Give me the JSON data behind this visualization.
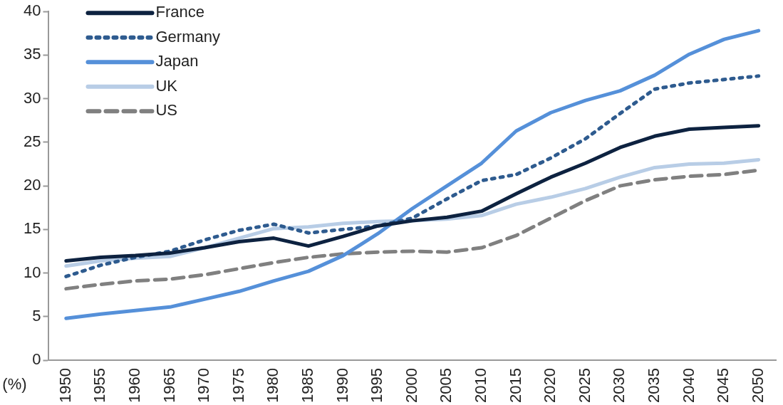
{
  "chart_data": {
    "type": "line",
    "ylabel": "(%)",
    "categories": [
      "1950",
      "1955",
      "1960",
      "1965",
      "1970",
      "1975",
      "1980",
      "1985",
      "1990",
      "1995",
      "2000",
      "2005",
      "2010",
      "2015",
      "2020",
      "2025",
      "2030",
      "2035",
      "2040",
      "2045",
      "2050"
    ],
    "ylim": [
      0,
      40
    ],
    "yticks": [
      0,
      5,
      10,
      15,
      20,
      25,
      30,
      35,
      40
    ],
    "grid": false,
    "legend": "top left",
    "marker": "none",
    "series": [
      {
        "name": "France",
        "color": "#0d2240",
        "line_style": "solid",
        "values": [
          11.4,
          11.8,
          12.0,
          12.3,
          12.9,
          13.6,
          14.0,
          13.1,
          14.2,
          15.4,
          16.0,
          16.4,
          17.1,
          19.1,
          21.0,
          22.6,
          24.4,
          25.7,
          26.5,
          26.7,
          26.9
        ]
      },
      {
        "name": "Germany",
        "color": "#2e5b8f",
        "line_style": "dotted",
        "values": [
          9.6,
          10.9,
          11.8,
          12.5,
          13.8,
          14.9,
          15.6,
          14.6,
          15.0,
          15.4,
          16.3,
          18.5,
          20.6,
          21.3,
          23.2,
          25.4,
          28.3,
          31.1,
          31.8,
          32.2,
          32.6
        ]
      },
      {
        "name": "Japan",
        "color": "#5590d9",
        "line_style": "solid",
        "values": [
          4.8,
          5.3,
          5.7,
          6.1,
          7.0,
          7.9,
          9.1,
          10.2,
          12.0,
          14.5,
          17.4,
          20.0,
          22.6,
          26.3,
          28.4,
          29.8,
          30.9,
          32.7,
          35.1,
          36.8,
          37.8
        ]
      },
      {
        "name": "UK",
        "color": "#b8cde6",
        "line_style": "solid",
        "values": [
          10.8,
          11.4,
          11.7,
          11.9,
          12.9,
          14.0,
          15.1,
          15.3,
          15.7,
          15.9,
          16.0,
          16.2,
          16.6,
          17.9,
          18.7,
          19.7,
          21.0,
          22.1,
          22.5,
          22.6,
          23.0
        ]
      },
      {
        "name": "US",
        "color": "#808080",
        "line_style": "dashed",
        "values": [
          8.2,
          8.7,
          9.1,
          9.3,
          9.8,
          10.5,
          11.2,
          11.8,
          12.2,
          12.4,
          12.5,
          12.4,
          12.9,
          14.3,
          16.3,
          18.3,
          20.0,
          20.7,
          21.1,
          21.3,
          21.8
        ]
      }
    ]
  }
}
